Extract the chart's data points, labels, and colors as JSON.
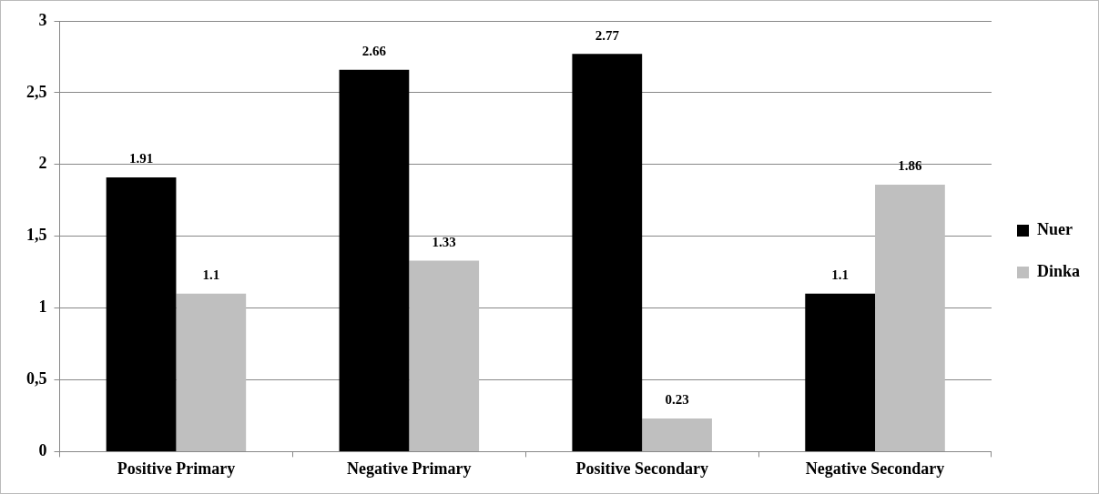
{
  "chart_data": {
    "type": "bar",
    "categories": [
      "Positive Primary",
      "Negative Primary",
      "Positive Secondary",
      "Negative Secondary"
    ],
    "series": [
      {
        "name": "Nuer",
        "color": "#000000",
        "values": [
          1.91,
          2.66,
          2.77,
          1.1
        ]
      },
      {
        "name": "Dinka",
        "color": "#bfbfbf",
        "values": [
          1.1,
          1.33,
          0.23,
          1.86
        ]
      }
    ],
    "ylim": [
      0,
      3
    ],
    "yticks": [
      0,
      {
        "value": 0.5,
        "label": "0,5"
      },
      1,
      {
        "value": 1.5,
        "label": "1,5"
      },
      2,
      {
        "value": 2.5,
        "label": "2,5"
      },
      3
    ],
    "grid": "y",
    "legend": "right",
    "data_labels": true
  }
}
